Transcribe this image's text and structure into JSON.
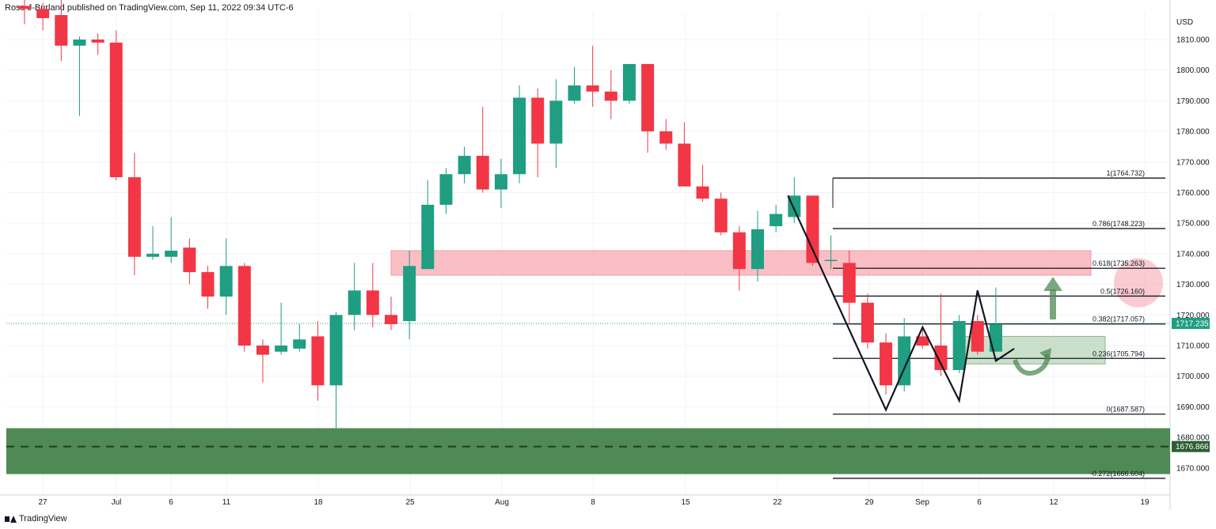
{
  "header": {
    "publisher_line": "Ross-J-Burland published on TradingView.com, Sep 11, 2022 09:34 UTC-6"
  },
  "footer": {
    "brand": "TradingView"
  },
  "colors": {
    "up": "#26a69a",
    "down": "#ef5350",
    "up_body": "#1f9e82",
    "down_body": "#f23645",
    "support_zone": "#4f8a55",
    "resistance_zone": "#f7a9b0",
    "fib_line": "#131722",
    "wick": "#131722"
  },
  "chart_data": {
    "type": "candlestick",
    "currency": "USD",
    "ylim": [
      1664,
      1818
    ],
    "y_ticks": [
      "1810.000",
      "1800.000",
      "1790.000",
      "1780.000",
      "1770.000",
      "1760.000",
      "1750.000",
      "1740.000",
      "1730.000",
      "1720.000",
      "1710.000",
      "1700.000",
      "1690.000",
      "1680.000",
      "1670.000"
    ],
    "x_tick_labels": [
      "27",
      "Jul",
      "6",
      "11",
      "18",
      "25",
      "Aug",
      "8",
      "15",
      "22",
      "29",
      "Sep",
      "6",
      "12",
      "19"
    ],
    "last_price": "1717.235",
    "support_level_label": "1676.866",
    "candles": [
      {
        "o": 1821,
        "h": 1823,
        "l": 1815,
        "c": 1820
      },
      {
        "o": 1820,
        "h": 1822,
        "l": 1813,
        "c": 1817
      },
      {
        "o": 1818,
        "h": 1824,
        "l": 1803,
        "c": 1808
      },
      {
        "o": 1808,
        "h": 1811,
        "l": 1785,
        "c": 1810
      },
      {
        "o": 1810,
        "h": 1812,
        "l": 1805,
        "c": 1809
      },
      {
        "o": 1809,
        "h": 1813,
        "l": 1764,
        "c": 1765
      },
      {
        "o": 1765,
        "h": 1773,
        "l": 1733,
        "c": 1739
      },
      {
        "o": 1739,
        "h": 1749,
        "l": 1738,
        "c": 1740
      },
      {
        "o": 1739,
        "h": 1752,
        "l": 1737,
        "c": 1741
      },
      {
        "o": 1742,
        "h": 1745,
        "l": 1730,
        "c": 1734
      },
      {
        "o": 1734,
        "h": 1736,
        "l": 1722,
        "c": 1726
      },
      {
        "o": 1726,
        "h": 1745,
        "l": 1720,
        "c": 1736
      },
      {
        "o": 1736,
        "h": 1737,
        "l": 1708,
        "c": 1710
      },
      {
        "o": 1710,
        "h": 1712,
        "l": 1698,
        "c": 1707
      },
      {
        "o": 1708,
        "h": 1724,
        "l": 1707,
        "c": 1710
      },
      {
        "o": 1709,
        "h": 1717,
        "l": 1708,
        "c": 1712
      },
      {
        "o": 1713,
        "h": 1718,
        "l": 1692,
        "c": 1697
      },
      {
        "o": 1697,
        "h": 1721,
        "l": 1682,
        "c": 1720
      },
      {
        "o": 1720,
        "h": 1737,
        "l": 1715,
        "c": 1728
      },
      {
        "o": 1728,
        "h": 1737,
        "l": 1716,
        "c": 1720
      },
      {
        "o": 1720,
        "h": 1726,
        "l": 1715,
        "c": 1717
      },
      {
        "o": 1718,
        "h": 1741,
        "l": 1712,
        "c": 1736
      },
      {
        "o": 1735,
        "h": 1764,
        "l": 1735,
        "c": 1756
      },
      {
        "o": 1756,
        "h": 1768,
        "l": 1753,
        "c": 1766
      },
      {
        "o": 1766,
        "h": 1775,
        "l": 1763,
        "c": 1772
      },
      {
        "o": 1772,
        "h": 1788,
        "l": 1760,
        "c": 1761
      },
      {
        "o": 1761,
        "h": 1771,
        "l": 1755,
        "c": 1766
      },
      {
        "o": 1766,
        "h": 1795,
        "l": 1763,
        "c": 1791
      },
      {
        "o": 1791,
        "h": 1794,
        "l": 1765,
        "c": 1776
      },
      {
        "o": 1776,
        "h": 1797,
        "l": 1768,
        "c": 1790
      },
      {
        "o": 1790,
        "h": 1801,
        "l": 1789,
        "c": 1795
      },
      {
        "o": 1795,
        "h": 1808,
        "l": 1788,
        "c": 1793
      },
      {
        "o": 1793,
        "h": 1800,
        "l": 1784,
        "c": 1790
      },
      {
        "o": 1790,
        "h": 1802,
        "l": 1789,
        "c": 1802
      },
      {
        "o": 1802,
        "h": 1802,
        "l": 1773,
        "c": 1780
      },
      {
        "o": 1780,
        "h": 1784,
        "l": 1774,
        "c": 1776
      },
      {
        "o": 1776,
        "h": 1783,
        "l": 1762,
        "c": 1762
      },
      {
        "o": 1762,
        "h": 1769,
        "l": 1757,
        "c": 1758
      },
      {
        "o": 1758,
        "h": 1760,
        "l": 1746,
        "c": 1747
      },
      {
        "o": 1747,
        "h": 1749,
        "l": 1728,
        "c": 1735
      },
      {
        "o": 1735,
        "h": 1754,
        "l": 1731,
        "c": 1748
      },
      {
        "o": 1749,
        "h": 1756,
        "l": 1747,
        "c": 1753
      },
      {
        "o": 1752,
        "h": 1765,
        "l": 1750,
        "c": 1759
      },
      {
        "o": 1759,
        "h": 1759,
        "l": 1736,
        "c": 1737
      },
      {
        "o": 1738,
        "h": 1746,
        "l": 1735,
        "c": 1738
      },
      {
        "o": 1737,
        "h": 1741,
        "l": 1717,
        "c": 1724
      },
      {
        "o": 1724,
        "h": 1727,
        "l": 1709,
        "c": 1711
      },
      {
        "o": 1711,
        "h": 1714,
        "l": 1694,
        "c": 1697
      },
      {
        "o": 1697,
        "h": 1719,
        "l": 1695,
        "c": 1713
      },
      {
        "o": 1713,
        "h": 1716,
        "l": 1709,
        "c": 1710
      },
      {
        "o": 1710,
        "h": 1727,
        "l": 1700,
        "c": 1702
      },
      {
        "o": 1702,
        "h": 1720,
        "l": 1701,
        "c": 1718
      },
      {
        "o": 1718,
        "h": 1720,
        "l": 1707,
        "c": 1708
      },
      {
        "o": 1708,
        "h": 1729,
        "l": 1708,
        "c": 1717
      }
    ],
    "fib_levels": [
      {
        "ratio": "1",
        "value": 1764.732,
        "label": "1(1764.732)"
      },
      {
        "ratio": "0.786",
        "value": 1748.223,
        "label": "0.786(1748.223)"
      },
      {
        "ratio": "0.618",
        "value": 1735.263,
        "label": "0.618(1735.263)"
      },
      {
        "ratio": "0.5",
        "value": 1726.16,
        "label": "0.5(1726.160)"
      },
      {
        "ratio": "0.382",
        "value": 1717.057,
        "label": "0.382(1717.057)"
      },
      {
        "ratio": "0.236",
        "value": 1705.794,
        "label": "0.236(1705.794)"
      },
      {
        "ratio": "0",
        "value": 1687.587,
        "label": "0(1687.587)"
      },
      {
        "ratio": "-0.272",
        "value": 1666.604,
        "label": "-0.272(1666.604)"
      }
    ],
    "resistance_zone": {
      "low": 1733,
      "high": 1741
    },
    "support_zone": {
      "low": 1668,
      "high": 1683
    },
    "neckline_zone": {
      "low": 1704,
      "high": 1713
    },
    "support_line": 1677,
    "zigzag": [
      [
        42,
        1759
      ],
      [
        47,
        1689
      ],
      [
        49,
        1716
      ],
      [
        51,
        1692
      ],
      [
        52,
        1728
      ],
      [
        53,
        1705
      ],
      [
        54,
        1709
      ]
    ]
  }
}
